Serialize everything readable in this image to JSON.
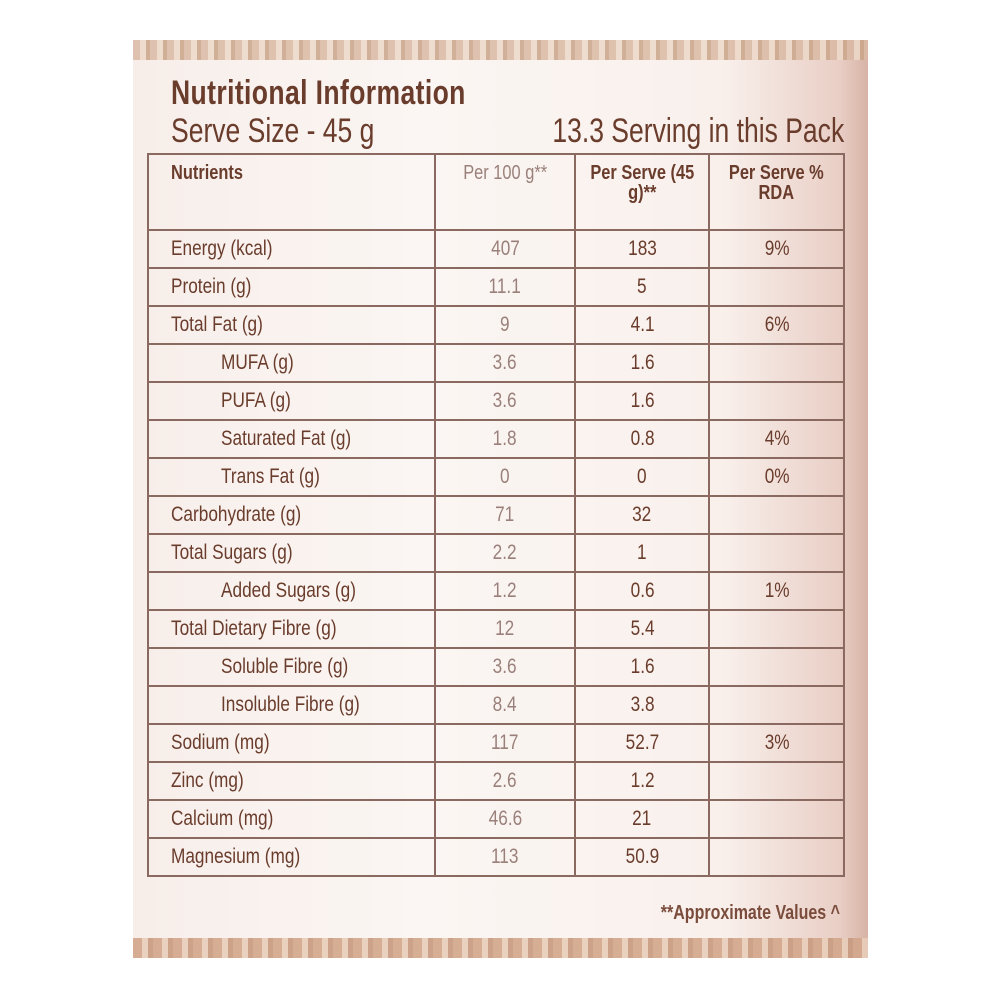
{
  "title": "Nutritional Information",
  "serve_size": "Serve Size - 45 g",
  "servings": "13.3 Serving in this Pack",
  "headers": [
    "Nutrients",
    "Per 100 g**",
    "Per Serve (45 g)**",
    "Per Serve % RDA"
  ],
  "rows": [
    {
      "name": "Energy (kcal)",
      "per100": "407",
      "perServe": "183",
      "rda": "9%",
      "indent": false
    },
    {
      "name": "Protein (g)",
      "per100": "11.1",
      "perServe": "5",
      "rda": "",
      "indent": false
    },
    {
      "name": "Total Fat (g)",
      "per100": "9",
      "perServe": "4.1",
      "rda": "6%",
      "indent": false
    },
    {
      "name": "MUFA (g)",
      "per100": "3.6",
      "perServe": "1.6",
      "rda": "",
      "indent": true
    },
    {
      "name": "PUFA (g)",
      "per100": "3.6",
      "perServe": "1.6",
      "rda": "",
      "indent": true
    },
    {
      "name": "Saturated Fat (g)",
      "per100": "1.8",
      "perServe": "0.8",
      "rda": "4%",
      "indent": true
    },
    {
      "name": "Trans Fat (g)",
      "per100": "0",
      "perServe": "0",
      "rda": "0%",
      "indent": true
    },
    {
      "name": "Carbohydrate (g)",
      "per100": "71",
      "perServe": "32",
      "rda": "",
      "indent": false
    },
    {
      "name": "Total Sugars (g)",
      "per100": "2.2",
      "perServe": "1",
      "rda": "",
      "indent": false
    },
    {
      "name": "Added Sugars (g)",
      "per100": "1.2",
      "perServe": "0.6",
      "rda": "1%",
      "indent": true
    },
    {
      "name": "Total Dietary Fibre (g)",
      "per100": "12",
      "perServe": "5.4",
      "rda": "",
      "indent": false
    },
    {
      "name": "Soluble Fibre (g)",
      "per100": "3.6",
      "perServe": "1.6",
      "rda": "",
      "indent": true
    },
    {
      "name": "Insoluble Fibre (g)",
      "per100": "8.4",
      "perServe": "3.8",
      "rda": "",
      "indent": true
    },
    {
      "name": "Sodium (mg)",
      "per100": "117",
      "perServe": "52.7",
      "rda": "3%",
      "indent": false
    },
    {
      "name": "Zinc (mg)",
      "per100": "2.6",
      "perServe": "1.2",
      "rda": "",
      "indent": false
    },
    {
      "name": "Calcium (mg)",
      "per100": "46.6",
      "perServe": "21",
      "rda": "",
      "indent": false
    },
    {
      "name": "Magnesium (mg)",
      "per100": "113",
      "perServe": "50.9",
      "rda": "",
      "indent": false
    }
  ],
  "footnote": "**Approximate Values ^"
}
